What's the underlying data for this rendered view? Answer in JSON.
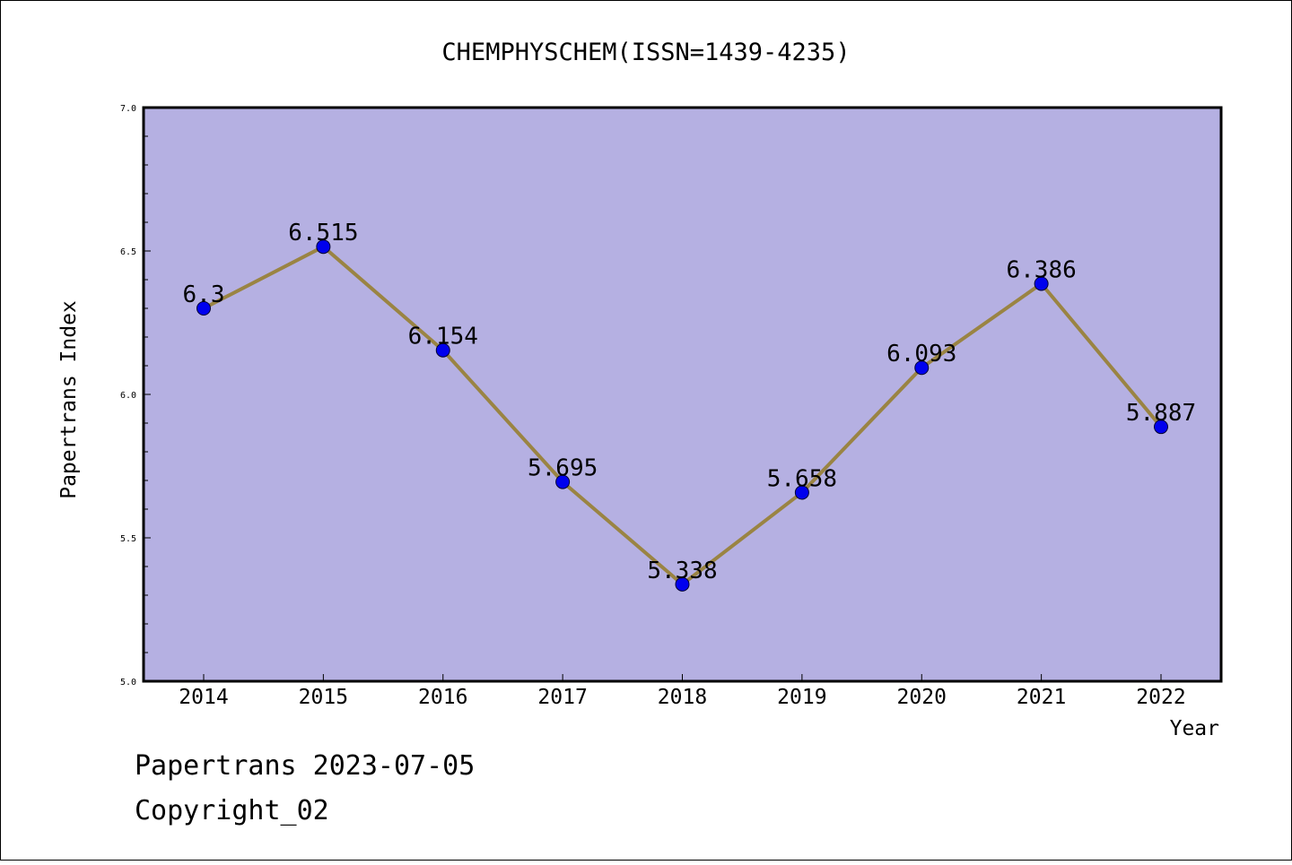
{
  "chart_data": {
    "type": "line",
    "title": "CHEMPHYSCHEM(ISSN=1439-4235)",
    "xlabel": "Year",
    "ylabel": "Papertrans Index",
    "x": [
      "2014",
      "2015",
      "2016",
      "2017",
      "2018",
      "2019",
      "2020",
      "2021",
      "2022"
    ],
    "values": [
      6.3,
      6.515,
      6.154,
      5.695,
      5.338,
      5.658,
      6.093,
      6.386,
      5.887
    ],
    "data_labels": [
      "6.3",
      "6.515",
      "6.154",
      "5.695",
      "5.338",
      "5.658",
      "6.093",
      "6.386",
      "5.887"
    ],
    "ylim": [
      5.0,
      7.0
    ],
    "yticks": [
      "5.0",
      "5.5",
      "6.0",
      "6.5",
      "7.0"
    ],
    "grid": false,
    "colors": {
      "plot_background": "#b5b0e2",
      "line": "#9a8443",
      "marker": "#0000ee"
    }
  },
  "footer": {
    "line1": "Papertrans 2023-07-05",
    "line2": "Copyright_02"
  }
}
